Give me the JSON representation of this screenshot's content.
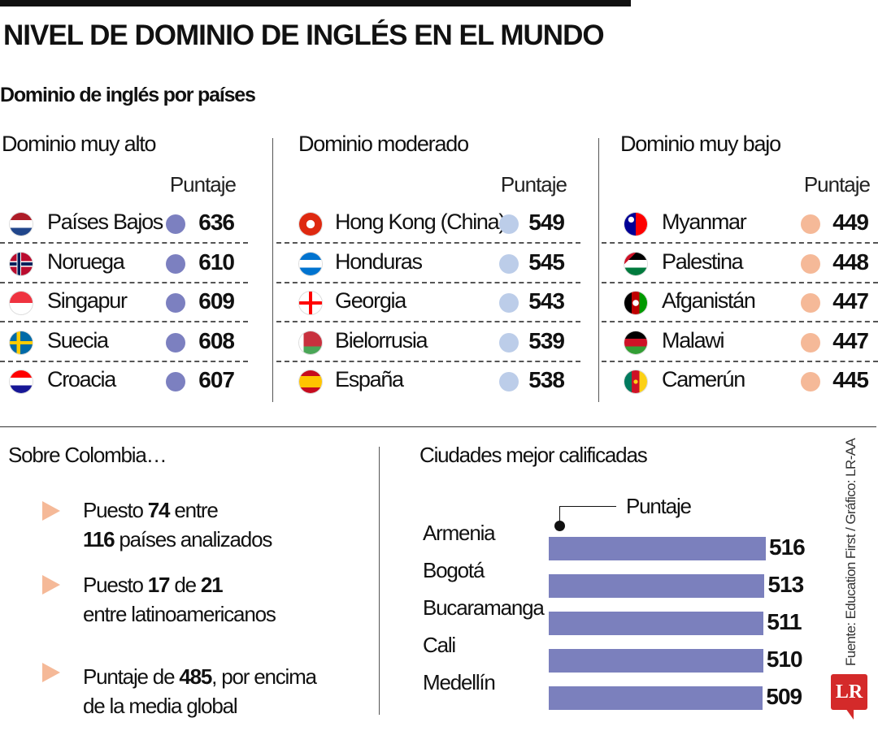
{
  "title": "NIVEL DE DOMINIO DE INGLÉS EN EL MUNDO",
  "subtitle": "Dominio de inglés por países",
  "colors": {
    "very_high": "#7c80c0",
    "moderate": "#bccde9",
    "very_low": "#f5b998",
    "bar": "#7b80bd",
    "logo": "#d42a2a"
  },
  "groups": [
    {
      "heading": "Dominio muy alto",
      "score_label": "Puntaje",
      "rows": [
        {
          "country": "Países Bajos",
          "flag": "netherlands-flag",
          "score": "636"
        },
        {
          "country": "Noruega",
          "flag": "norway-flag",
          "score": "610"
        },
        {
          "country": "Singapur",
          "flag": "singapore-flag",
          "score": "609"
        },
        {
          "country": "Suecia",
          "flag": "sweden-flag",
          "score": "608"
        },
        {
          "country": "Croacia",
          "flag": "croatia-flag",
          "score": "607"
        }
      ]
    },
    {
      "heading": "Dominio moderado",
      "score_label": "Puntaje",
      "rows": [
        {
          "country": "Hong Kong (China)",
          "flag": "hong-kong-flag",
          "score": "549"
        },
        {
          "country": "Honduras",
          "flag": "honduras-flag",
          "score": "545"
        },
        {
          "country": "Georgia",
          "flag": "georgia-flag",
          "score": "543"
        },
        {
          "country": "Bielorrusia",
          "flag": "belarus-flag",
          "score": "539"
        },
        {
          "country": "España",
          "flag": "spain-flag",
          "score": "538"
        }
      ]
    },
    {
      "heading": "Dominio muy bajo",
      "score_label": "Puntaje",
      "rows": [
        {
          "country": "Myanmar",
          "flag": "myanmar-flag",
          "score": "449"
        },
        {
          "country": "Palestina",
          "flag": "palestine-flag",
          "score": "448"
        },
        {
          "country": "Afganistán",
          "flag": "afghanistan-flag",
          "score": "447"
        },
        {
          "country": "Malawi",
          "flag": "malawi-flag",
          "score": "447"
        },
        {
          "country": "Camerún",
          "flag": "cameroon-flag",
          "score": "445"
        }
      ]
    }
  ],
  "colombia": {
    "heading": "Sobre Colombia…",
    "bullets": [
      {
        "l1a": "Puesto ",
        "l1b": "74",
        "l1c": " entre",
        "l2a": "116",
        "l2b": " países analizados"
      },
      {
        "l1a": "Puesto ",
        "l1b": "17",
        "l1c": " de ",
        "l1d": "21",
        "l2b": "entre latinoamericanos"
      },
      {
        "l1a": "Puntaje de ",
        "l1b": "485",
        "l1c": ", por encima",
        "l2b": "de la media global"
      }
    ]
  },
  "chart_data": {
    "type": "bar",
    "title": "Ciudades mejor calificadas",
    "legend_label": "Puntaje",
    "orientation": "horizontal",
    "categories": [
      "Armenia",
      "Bogotá",
      "Bucaramanga",
      "Cali",
      "Medellín"
    ],
    "values": [
      516,
      513,
      511,
      510,
      509
    ],
    "grid": false
  },
  "source": "Fuente: Education First / Gráfico: LR-AA",
  "logo": "LR"
}
